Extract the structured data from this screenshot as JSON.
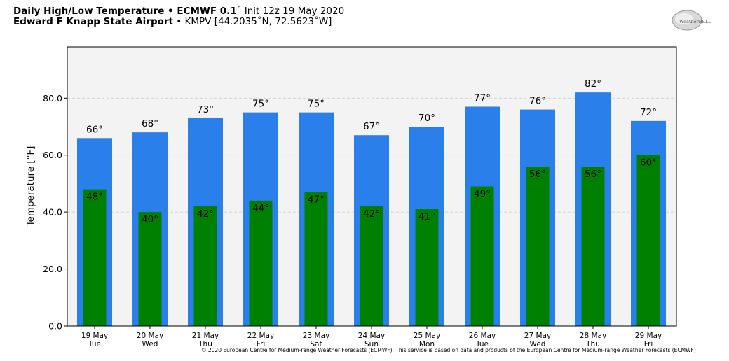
{
  "header": {
    "title_bold": "Daily High/Low Temperature • ECMWF 0.1",
    "title_deg": "˚",
    "title_rest": " Init 12z 19 May 2020",
    "location_bold": "Edward F Knapp State Airport",
    "location_rest": " • KMPV [44.2035˚N, 72.5623˚W]"
  },
  "logo": {
    "icon": "weatherbell-logo",
    "text": "WeatherBELL"
  },
  "footer": {
    "copyright": "© 2020 European Centre for Medium-range Weather Forecasts (ECMWF). This service is based on data and products of the European Centre for Medium-range Weather Forecasts (ECMWF)"
  },
  "colors": {
    "high": "#2b7fea",
    "low": "#008000",
    "plot_bg": "#f3f3f3"
  },
  "chart_data": {
    "type": "bar",
    "ylabel": "Temperature [°F]",
    "ylim": [
      0,
      98
    ],
    "yticks": [
      0,
      20,
      40,
      60,
      80
    ],
    "ytick_labels": [
      "0.0",
      "20.0",
      "40.0",
      "60.0",
      "80.0"
    ],
    "grid": true,
    "categories": [
      "19 May",
      "20 May",
      "21 May",
      "22 May",
      "23 May",
      "24 May",
      "25 May",
      "26 May",
      "27 May",
      "28 May",
      "29 May"
    ],
    "weekdays": [
      "Tue",
      "Wed",
      "Thu",
      "Fri",
      "Sat",
      "Sun",
      "Mon",
      "Tue",
      "Wed",
      "Thu",
      "Fri"
    ],
    "series": [
      {
        "key": "high",
        "values": [
          66,
          68,
          73,
          75,
          75,
          67,
          70,
          77,
          76,
          82,
          72
        ],
        "labels": [
          "66°",
          "68°",
          "73°",
          "75°",
          "75°",
          "67°",
          "70°",
          "77°",
          "76°",
          "82°",
          "72°"
        ]
      },
      {
        "key": "low",
        "values": [
          48,
          40,
          42,
          44,
          47,
          42,
          41,
          49,
          56,
          56,
          60
        ],
        "labels": [
          "48°",
          "40°",
          "42°",
          "44°",
          "47°",
          "42°",
          "41°",
          "49°",
          "56°",
          "56°",
          "60°"
        ]
      }
    ]
  }
}
